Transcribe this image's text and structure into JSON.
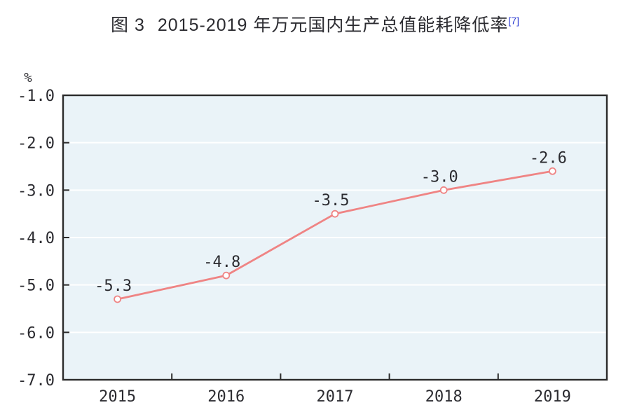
{
  "figure": {
    "title_prefix": "图 3",
    "title_text": "2015-2019 年万元国内生产总值能耗降低率",
    "title_footnote": "[7]"
  },
  "chart_data": {
    "type": "line",
    "title": "图 3 2015-2019 年万元国内生产总值能耗降低率[7]",
    "unit_label": "%",
    "categories": [
      "2015",
      "2016",
      "2017",
      "2018",
      "2019"
    ],
    "series": [
      {
        "name": "万元国内生产总值能耗降低率",
        "values": [
          -5.3,
          -4.8,
          -3.5,
          -3.0,
          -2.6
        ]
      }
    ],
    "point_labels": [
      "-5.3",
      "-4.8",
      "-3.5",
      "-3.0",
      "-2.6"
    ],
    "y_ticks": {
      "labels": [
        "-1.0",
        "-2.0",
        "-3.0",
        "-4.0",
        "-5.0",
        "-6.0",
        "-7.0"
      ],
      "values": [
        -1,
        -2,
        -3,
        -4,
        -5,
        -6,
        -7
      ]
    },
    "ylim": [
      -7,
      -1
    ],
    "legend": "none",
    "grid": "horizontal-white-gridlines",
    "marker": "open-circle",
    "colors": {
      "line": "#ef8484",
      "marker_fill": "#ffffff",
      "plot_bg": "#eaf3f8",
      "gridline": "#ffffff",
      "axis": "#2b2b2b",
      "text": "#2b2b30",
      "footnote": "#2b3bd2",
      "page_bg": "#ffffff"
    }
  }
}
